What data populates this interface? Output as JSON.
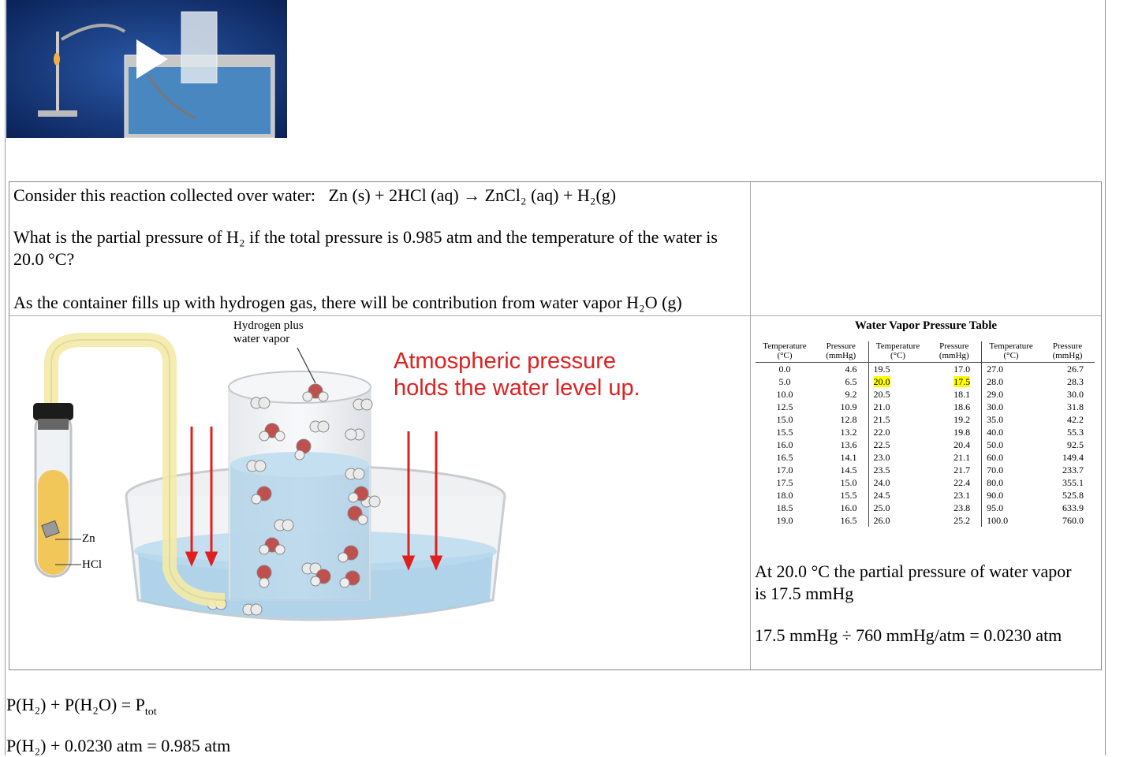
{
  "video": {
    "play_icon": "play-icon"
  },
  "question": {
    "reaction_prefix": "Consider this reaction collected over water:",
    "reaction_equation": "Zn (s) + 2HCl (aq) → ZnCl₂ (aq) + H₂(g)",
    "prompt": "What is the partial pressure of H₂ if the total pressure is 0.985 atm and the temperature of the water is 20.0 °C?",
    "note": "As the container fills up with hydrogen gas, there will be contribution from water vapor H₂O (g)"
  },
  "figure": {
    "label_gas_line1": "Hydrogen plus",
    "label_gas_line2": "water vapor",
    "atmospheric_line1": "Atmospheric pressure",
    "atmospheric_line2": "holds the water level up.",
    "label_zn": "Zn",
    "label_hcl": "HCl"
  },
  "vapor_table": {
    "title": "Water Vapor Pressure Table",
    "headers": [
      "Temperature (°C)",
      "Pressure (mmHg)",
      "Temperature (°C)",
      "Pressure (mmHg)",
      "Temperature (°C)",
      "Pressure (mmHg)"
    ],
    "rows": [
      [
        "0.0",
        "4.6",
        "19.5",
        "17.0",
        "27.0",
        "26.7"
      ],
      [
        "5.0",
        "6.5",
        "20.0",
        "17.5",
        "28.0",
        "28.3"
      ],
      [
        "10.0",
        "9.2",
        "20.5",
        "18.1",
        "29.0",
        "30.0"
      ],
      [
        "12.5",
        "10.9",
        "21.0",
        "18.6",
        "30.0",
        "31.8"
      ],
      [
        "15.0",
        "12.8",
        "21.5",
        "19.2",
        "35.0",
        "42.2"
      ],
      [
        "15.5",
        "13.2",
        "22.0",
        "19.8",
        "40.0",
        "55.3"
      ],
      [
        "16.0",
        "13.6",
        "22.5",
        "20.4",
        "50.0",
        "92.5"
      ],
      [
        "16.5",
        "14.1",
        "23.0",
        "21.1",
        "60.0",
        "149.4"
      ],
      [
        "17.0",
        "14.5",
        "23.5",
        "21.7",
        "70.0",
        "233.7"
      ],
      [
        "17.5",
        "15.0",
        "24.0",
        "22.4",
        "80.0",
        "355.1"
      ],
      [
        "18.0",
        "15.5",
        "24.5",
        "23.1",
        "90.0",
        "525.8"
      ],
      [
        "18.5",
        "16.0",
        "25.0",
        "23.8",
        "95.0",
        "633.9"
      ],
      [
        "19.0",
        "16.5",
        "26.0",
        "25.2",
        "100.0",
        "760.0"
      ]
    ],
    "highlight_color": "#ffff00"
  },
  "explanation": {
    "line1": "At 20.0 °C the partial pressure of water vapor",
    "line2": "is 17.5 mmHg",
    "conversion": "17.5 mmHg ÷ 760 mmHg/atm = 0.0230 atm"
  },
  "equations": {
    "eq1_main": "P(H₂) + P(H₂O) = P",
    "eq1_sub": "tot",
    "eq2": "P(H₂) + 0.0230 atm = 0.985 atm"
  },
  "colors": {
    "arrow_red": "#e02020",
    "water_blue": "#a9cfe8"
  }
}
